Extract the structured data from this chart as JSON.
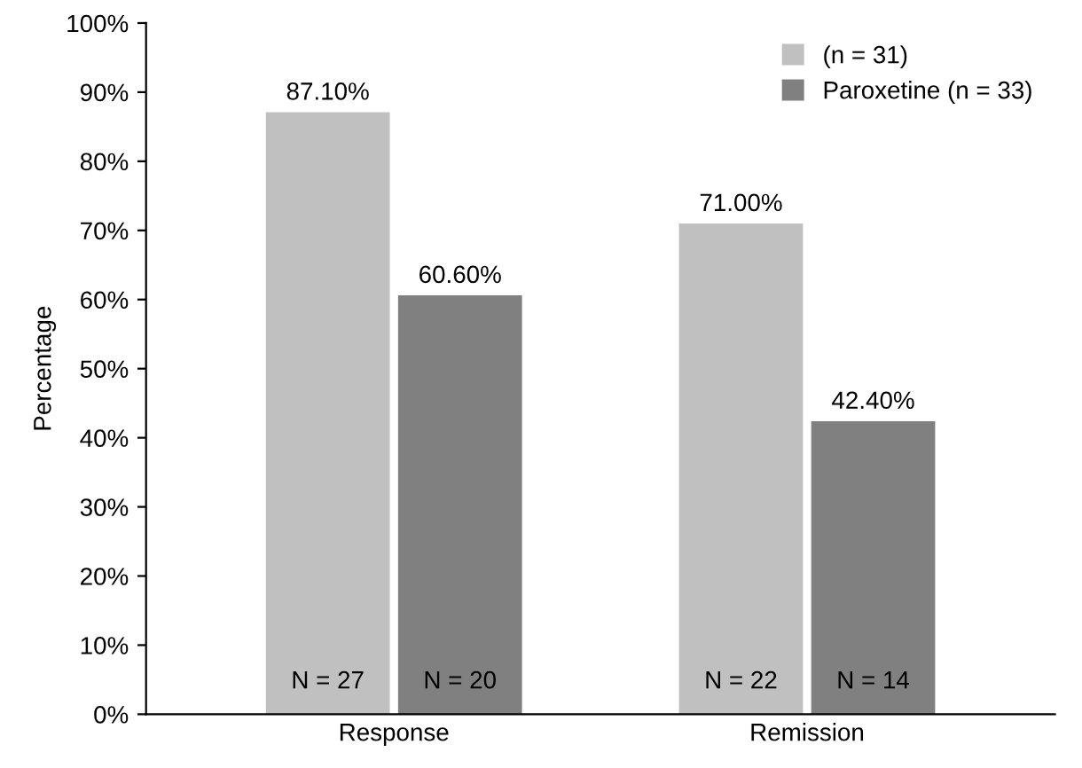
{
  "chart_data": {
    "type": "bar",
    "ylabel": "Percentage",
    "categories": [
      "Response",
      "Remission"
    ],
    "series": [
      {
        "name": "(n = 31)",
        "color": "#c0c0c0",
        "values": [
          87.1,
          71.0
        ],
        "value_labels": [
          "87.10%",
          "71.00%"
        ]
      },
      {
        "name": "Paroxetine (n = 33)",
        "color": "#808080",
        "values": [
          60.6,
          42.4
        ],
        "value_labels": [
          "60.60%",
          "42.40%"
        ]
      }
    ],
    "ylim": [
      0,
      100
    ],
    "yticks": [
      {
        "value": 0,
        "label": "0%"
      },
      {
        "value": 10,
        "label": "10%"
      },
      {
        "value": 20,
        "label": "20%"
      },
      {
        "value": 30,
        "label": "30%"
      },
      {
        "value": 40,
        "label": "40%"
      },
      {
        "value": 50,
        "label": "50%"
      },
      {
        "value": 60,
        "label": "60%"
      },
      {
        "value": 70,
        "label": "70%"
      },
      {
        "value": 80,
        "label": "80%"
      },
      {
        "value": 90,
        "label": "90%"
      },
      {
        "value": 100,
        "label": "100%"
      }
    ],
    "annotations": [
      {
        "text": "N = 27",
        "x": "Response",
        "y": 3
      },
      {
        "text": "N = 20",
        "x": "Response",
        "y": 3
      },
      {
        "text": "N = 22",
        "x": "Remission",
        "y": 3
      },
      {
        "text": "N = 14",
        "x": "Remission",
        "y": 3
      }
    ],
    "legend": "top right",
    "grid": false
  }
}
